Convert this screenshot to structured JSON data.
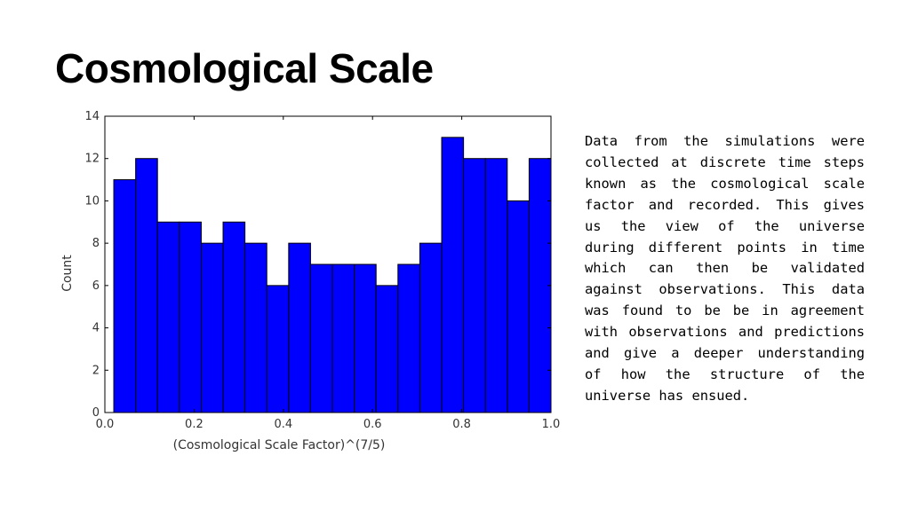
{
  "slide": {
    "title": "Cosmological Scale",
    "body": "Data from the simulations were collected at discrete time steps known as the cosmological scale factor and recorded. This gives us the view of the universe during different points in time which can then be validated against observations. This data was found to be be in agreement with observations and predictions and give a deeper understanding of how the structure of the universe has ensued."
  },
  "chart_data": {
    "type": "bar",
    "subtype": "histogram",
    "title": "",
    "xlabel": "(Cosmological Scale Factor)^(7/5)",
    "ylabel": "Count",
    "xlim": [
      0.0,
      1.0
    ],
    "ylim": [
      0,
      14
    ],
    "xticks": [
      "0.0",
      "0.2",
      "0.4",
      "0.6",
      "0.8",
      "1.0"
    ],
    "yticks": [
      "0",
      "2",
      "4",
      "6",
      "8",
      "10",
      "12",
      "14"
    ],
    "bin_start": 0.02,
    "bin_width": 0.049,
    "values": [
      11,
      12,
      9,
      9,
      8,
      9,
      8,
      6,
      8,
      7,
      7,
      7,
      6,
      7,
      8,
      13,
      12,
      12,
      10,
      12
    ],
    "bar_color": "#0000ff",
    "edge_color": "#000000",
    "grid": false
  }
}
